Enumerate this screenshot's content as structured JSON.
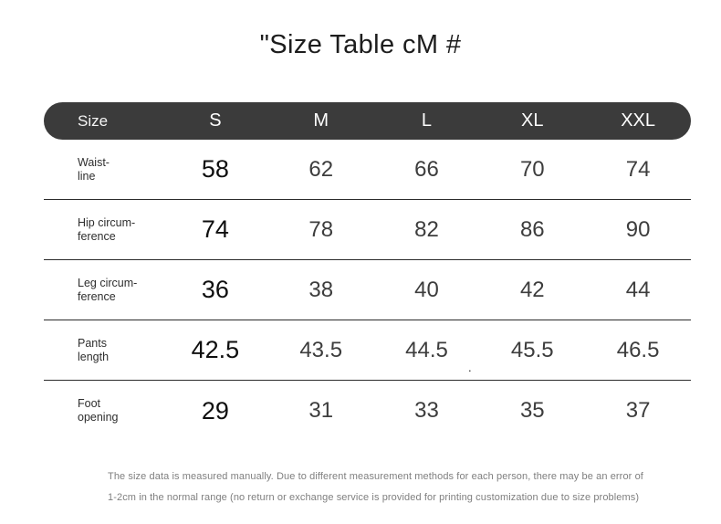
{
  "title": "\"Size Table cM #",
  "table": {
    "header": {
      "label": "Size",
      "sizes": [
        "S",
        "M",
        "L",
        "XL",
        "XXL"
      ]
    },
    "rows": [
      {
        "label_line1": "Waist-",
        "label_line2": "line",
        "values": [
          "58",
          "62",
          "66",
          "70",
          "74"
        ]
      },
      {
        "label_line1": "Hip circum-",
        "label_line2": "ference",
        "values": [
          "74",
          "78",
          "82",
          "86",
          "90"
        ]
      },
      {
        "label_line1": "Leg circum-",
        "label_line2": "ference",
        "values": [
          "36",
          "38",
          "40",
          "42",
          "44"
        ]
      },
      {
        "label_line1": "Pants",
        "label_line2": "length",
        "values": [
          "42.5",
          "43.5",
          "44.5",
          "45.5",
          "46.5"
        ]
      },
      {
        "label_line1": "Foot",
        "label_line2": "opening",
        "values": [
          "29",
          "31",
          "33",
          "35",
          "37"
        ]
      }
    ]
  },
  "artifacts": {
    "stray_dot": "."
  },
  "footer": {
    "line1": "The size data is measured manually. Due to different measurement methods for each person, there may be an error of",
    "line2": "1-2cm in the normal range (no return or exchange service is provided for printing customization due to size problems)"
  },
  "colors": {
    "header_bg": "#3b3b3b",
    "header_text": "#ffffff",
    "value_emphasis": "#0f0f0f",
    "value_normal": "#3d3d3d",
    "separator": "#2b2b2b",
    "footer_text": "#7f7f7f"
  },
  "chart_data": {
    "type": "table",
    "title": "\"Size Table cM #",
    "unit": "cm",
    "columns": [
      "Size",
      "S",
      "M",
      "L",
      "XL",
      "XXL"
    ],
    "rows": [
      {
        "measure": "Waist-line",
        "S": 58,
        "M": 62,
        "L": 66,
        "XL": 70,
        "XXL": 74
      },
      {
        "measure": "Hip circum-ference",
        "S": 74,
        "M": 78,
        "L": 82,
        "XL": 86,
        "XXL": 90
      },
      {
        "measure": "Leg circum-ference",
        "S": 36,
        "M": 38,
        "L": 40,
        "XL": 42,
        "XXL": 44
      },
      {
        "measure": "Pants length",
        "S": 42.5,
        "M": 43.5,
        "L": 44.5,
        "XL": 45.5,
        "XXL": 46.5
      },
      {
        "measure": "Foot opening",
        "S": 29,
        "M": 31,
        "L": 33,
        "XL": 35,
        "XXL": 37
      }
    ]
  }
}
